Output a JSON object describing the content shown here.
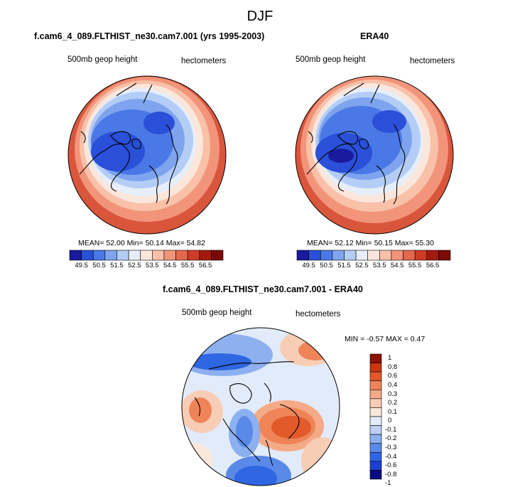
{
  "title": "DJF",
  "colors": {
    "full_palette": [
      "#1a1a9e",
      "#2a4fd8",
      "#4a78e6",
      "#7ea4ef",
      "#b4cdf6",
      "#e6eefa",
      "#fbe6dc",
      "#f8c1a8",
      "#f2947a",
      "#e4684e",
      "#cc3c26",
      "#a31a10",
      "#7a0a06"
    ],
    "diff_palette": [
      "#0a0a82",
      "#1e3fcc",
      "#2f66e2",
      "#5a8ae8",
      "#8db0f0",
      "#bcd0f6",
      "#e2ebfa",
      "#fbe8dc",
      "#f8cdb6",
      "#f4aa86",
      "#ee8458",
      "#e25a2a",
      "#c9360f",
      "#8c1204"
    ],
    "land_outline": "#000000"
  },
  "panels": [
    {
      "title": "f.cam6_4_089.FLTHIST_ne30.cam7.001 (yrs 1995-2003)",
      "left_label": "500mb geop height",
      "right_label": "hectometers",
      "stats": {
        "mean_label": "MEAN=",
        "mean": "52.00",
        "min_label": "Min=",
        "min": "50.14",
        "max_label": "Max=",
        "max": "54.82"
      },
      "colorbar_ticks": [
        "49.5",
        "50.5",
        "51.5",
        "52.5",
        "53.5",
        "54.5",
        "55.5",
        "56.5"
      ]
    },
    {
      "title": "ERA40",
      "left_label": "500mb geop height",
      "right_label": "hectometers",
      "stats": {
        "mean_label": "MEAN=",
        "mean": "52.12",
        "min_label": "Min=",
        "min": "50.15",
        "max_label": "Max=",
        "max": "55.30"
      },
      "colorbar_ticks": [
        "49.5",
        "50.5",
        "51.5",
        "52.5",
        "53.5",
        "54.5",
        "55.5",
        "56.5"
      ]
    },
    {
      "title": "f.cam6_4_089.FLTHIST_ne30.cam7.001 - ERA40",
      "left_label": "500mb geop height",
      "right_label": "hectometers",
      "stats_text": "MIN = -0.57 MAX =  0.47",
      "colorbar_ticks": [
        "1",
        "0.8",
        "0.6",
        "0.4",
        "0.3",
        "0.2",
        "0.1",
        "0",
        "-0.1",
        "-0.2",
        "-0.3",
        "-0.4",
        "-0.6",
        "-0.8",
        "-1"
      ]
    }
  ]
}
